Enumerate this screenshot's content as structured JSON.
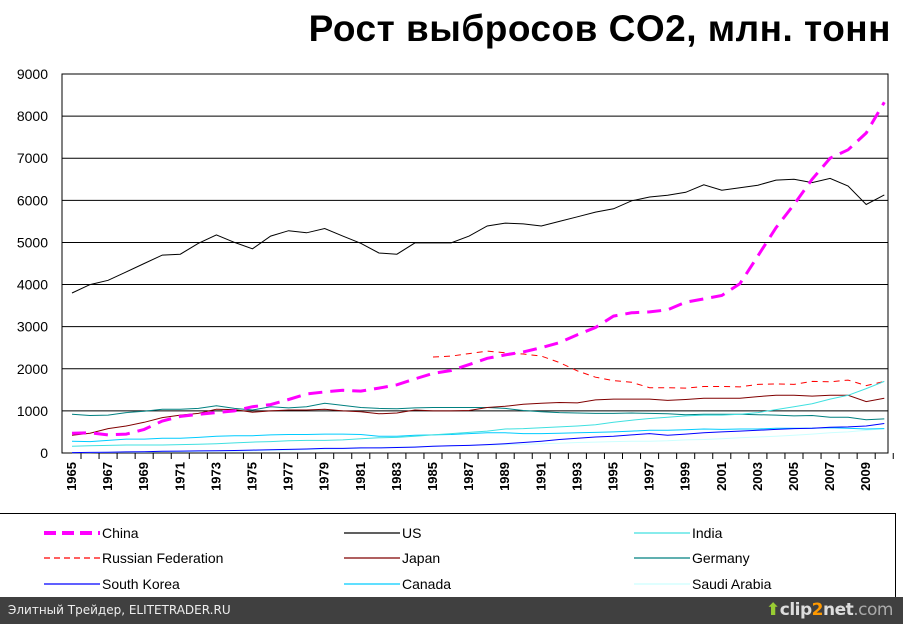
{
  "chart_data": {
    "type": "line",
    "title": "Рост выбросов CO2, млн. тонн",
    "xlabel": "",
    "ylabel": "",
    "ylim": [
      0,
      9000
    ],
    "yticks": [
      0,
      1000,
      2000,
      3000,
      4000,
      5000,
      6000,
      7000,
      8000,
      9000
    ],
    "xlim": [
      1965,
      2010
    ],
    "xtick_labels": [
      "1965",
      "1967",
      "1969",
      "1971",
      "1973",
      "1975",
      "1977",
      "1979",
      "1981",
      "1983",
      "1985",
      "1987",
      "1989",
      "1991",
      "1993",
      "1995",
      "1997",
      "1999",
      "2001",
      "2003",
      "2005",
      "2007",
      "2009"
    ],
    "grid": "horizontal",
    "legend_position": "bottom",
    "x": [
      1965,
      1966,
      1967,
      1968,
      1969,
      1970,
      1971,
      1972,
      1973,
      1974,
      1975,
      1976,
      1977,
      1978,
      1979,
      1980,
      1981,
      1982,
      1983,
      1984,
      1985,
      1986,
      1987,
      1988,
      1989,
      1990,
      1991,
      1992,
      1993,
      1994,
      1995,
      1996,
      1997,
      1998,
      1999,
      2000,
      2001,
      2002,
      2003,
      2004,
      2005,
      2006,
      2007,
      2008,
      2009,
      2010
    ],
    "series": [
      {
        "name": "China",
        "color": "#ff00ff",
        "dash": "long",
        "width": 3,
        "values": [
          470,
          480,
          430,
          450,
          560,
          760,
          870,
          920,
          960,
          1000,
          1100,
          1150,
          1270,
          1400,
          1450,
          1490,
          1470,
          1540,
          1620,
          1760,
          1890,
          1960,
          2100,
          2250,
          2330,
          2400,
          2500,
          2620,
          2810,
          2980,
          3250,
          3330,
          3350,
          3400,
          3580,
          3660,
          3740,
          4020,
          4680,
          5350,
          5900,
          6500,
          7000,
          7200,
          7600,
          8330
        ]
      },
      {
        "name": "US",
        "color": "#000000",
        "dash": "solid",
        "width": 1,
        "values": [
          3800,
          4000,
          4100,
          4300,
          4500,
          4700,
          4720,
          4980,
          5180,
          5000,
          4850,
          5150,
          5280,
          5230,
          5330,
          5150,
          4980,
          4750,
          4720,
          4990,
          4990,
          4990,
          5150,
          5390,
          5460,
          5440,
          5390,
          5500,
          5610,
          5720,
          5800,
          5990,
          6080,
          6120,
          6190,
          6370,
          6240,
          6300,
          6360,
          6480,
          6500,
          6420,
          6520,
          6340,
          5900,
          6130
        ]
      },
      {
        "name": "India",
        "color": "#40e0e0",
        "dash": "solid",
        "width": 1,
        "values": [
          160,
          170,
          180,
          190,
          190,
          190,
          200,
          210,
          220,
          240,
          260,
          270,
          290,
          300,
          300,
          310,
          340,
          360,
          370,
          400,
          430,
          460,
          490,
          520,
          570,
          580,
          600,
          620,
          640,
          670,
          730,
          780,
          820,
          850,
          880,
          900,
          900,
          920,
          960,
          1030,
          1100,
          1170,
          1280,
          1370,
          1530,
          1700
        ]
      },
      {
        "name": "Russian Federation",
        "color": "#ff0000",
        "dash": "short",
        "width": 1,
        "values": [
          null,
          null,
          null,
          null,
          null,
          null,
          null,
          null,
          null,
          null,
          null,
          null,
          null,
          null,
          null,
          null,
          null,
          null,
          null,
          null,
          2280,
          2300,
          2360,
          2420,
          2380,
          2350,
          2300,
          2150,
          1950,
          1800,
          1720,
          1680,
          1550,
          1550,
          1540,
          1580,
          1580,
          1570,
          1630,
          1640,
          1630,
          1700,
          1690,
          1730,
          1600,
          1700
        ]
      },
      {
        "name": "Japan",
        "color": "#800000",
        "dash": "solid",
        "width": 1,
        "values": [
          420,
          470,
          580,
          640,
          730,
          840,
          900,
          940,
          1040,
          1030,
          970,
          1000,
          1020,
          1020,
          1040,
          1000,
          980,
          930,
          950,
          1020,
          1000,
          1000,
          1010,
          1080,
          1110,
          1160,
          1180,
          1200,
          1190,
          1260,
          1280,
          1280,
          1280,
          1250,
          1270,
          1300,
          1300,
          1300,
          1340,
          1370,
          1370,
          1350,
          1370,
          1370,
          1220,
          1300
        ]
      },
      {
        "name": "Germany",
        "color": "#008080",
        "dash": "solid",
        "width": 1,
        "values": [
          920,
          890,
          900,
          960,
          990,
          1040,
          1040,
          1060,
          1120,
          1060,
          1020,
          1100,
          1070,
          1100,
          1180,
          1130,
          1080,
          1060,
          1050,
          1070,
          1080,
          1080,
          1080,
          1080,
          1060,
          1010,
          980,
          960,
          950,
          940,
          940,
          950,
          940,
          930,
          910,
          920,
          920,
          920,
          910,
          900,
          880,
          890,
          850,
          850,
          790,
          810
        ]
      },
      {
        "name": "South Korea",
        "color": "#0000ff",
        "dash": "solid",
        "width": 1,
        "values": [
          10,
          15,
          20,
          25,
          30,
          40,
          45,
          50,
          55,
          60,
          70,
          75,
          85,
          95,
          110,
          110,
          120,
          120,
          130,
          140,
          160,
          170,
          180,
          200,
          220,
          250,
          280,
          320,
          350,
          380,
          400,
          430,
          460,
          420,
          450,
          480,
          500,
          520,
          540,
          560,
          580,
          590,
          610,
          620,
          640,
          700
        ]
      },
      {
        "name": "Canada",
        "color": "#00ccff",
        "dash": "solid",
        "width": 1,
        "values": [
          280,
          270,
          300,
          330,
          330,
          350,
          350,
          370,
          400,
          410,
          410,
          430,
          440,
          440,
          450,
          450,
          440,
          400,
          400,
          420,
          430,
          440,
          460,
          480,
          480,
          460,
          460,
          470,
          480,
          490,
          500,
          520,
          540,
          540,
          550,
          570,
          560,
          570,
          570,
          590,
          590,
          590,
          600,
          590,
          570,
          580
        ]
      },
      {
        "name": "Saudi Arabia",
        "color": "#ccffff",
        "dash": "solid",
        "width": 1,
        "values": [
          10,
          10,
          15,
          20,
          20,
          30,
          30,
          35,
          40,
          40,
          50,
          60,
          70,
          80,
          90,
          100,
          110,
          130,
          140,
          150,
          160,
          170,
          180,
          190,
          200,
          210,
          220,
          230,
          250,
          260,
          270,
          280,
          280,
          290,
          310,
          320,
          340,
          360,
          380,
          400,
          420,
          450,
          480,
          500,
          540,
          580
        ]
      }
    ]
  },
  "footer": {
    "source": "Элитный Трейдер, ELITETRADER.RU",
    "logo": "clip2net.com"
  }
}
